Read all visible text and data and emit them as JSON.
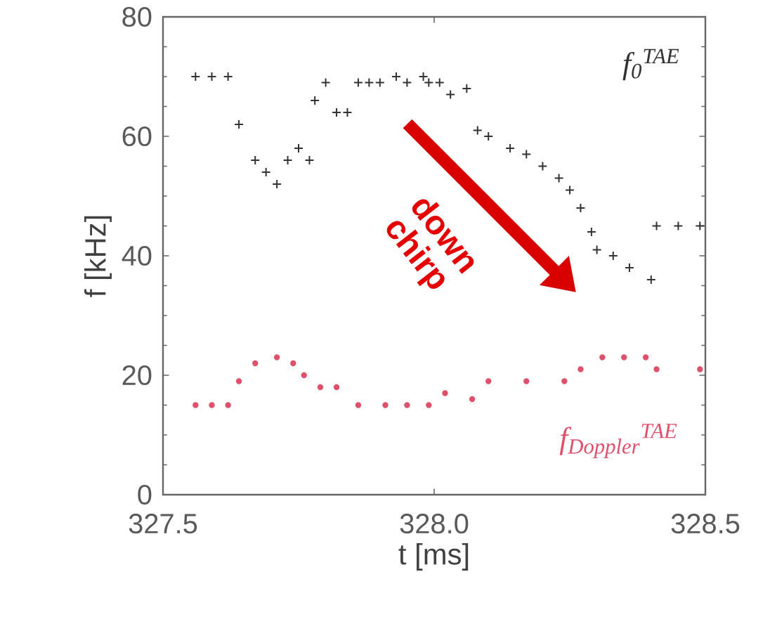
{
  "chart_data": {
    "type": "scatter",
    "xlabel": "t [ms]",
    "ylabel": "f [kHz]",
    "xlim": [
      327.5,
      328.5
    ],
    "ylim": [
      0,
      80
    ],
    "xticks": [
      {
        "value": 327.5,
        "label": "327.5"
      },
      {
        "value": 328,
        "label": "328.0"
      },
      {
        "value": 328.5,
        "label": "328.5"
      }
    ],
    "yticks": [
      0,
      20,
      40,
      60,
      80
    ],
    "grid": false,
    "series": [
      {
        "name": "*f*$_{0}$$^{TAE}$",
        "color": "#333333",
        "marker": "cross",
        "x": [
          327.56,
          327.59,
          327.62,
          327.64,
          327.67,
          327.69,
          327.71,
          327.73,
          327.75,
          327.77,
          327.78,
          327.8,
          327.82,
          327.84,
          327.86,
          327.88,
          327.9,
          327.93,
          327.95,
          327.98,
          327.99,
          328.01,
          328.03,
          328.06,
          328.08,
          328.1,
          328.14,
          328.17,
          328.2,
          328.23,
          328.25,
          328.27,
          328.29,
          328.3,
          328.33,
          328.36,
          328.4,
          328.41,
          328.45,
          328.49
        ],
        "values": [
          70,
          70,
          70,
          62,
          56,
          54,
          52,
          56,
          58,
          56,
          66,
          69,
          64,
          64,
          69,
          69,
          69,
          70,
          69,
          70,
          69,
          69,
          67,
          68,
          61,
          60,
          58,
          57,
          55,
          53,
          51,
          48,
          44,
          41,
          40,
          38,
          36,
          45,
          45,
          45
        ]
      },
      {
        "name": "*f*$_{Doppler}$$^{TAE}$",
        "color": "#e0506a",
        "marker": "circle",
        "x": [
          327.56,
          327.59,
          327.62,
          327.64,
          327.67,
          327.71,
          327.74,
          327.76,
          327.79,
          327.82,
          327.86,
          327.91,
          327.95,
          327.99,
          328.02,
          328.07,
          328.1,
          328.17,
          328.24,
          328.27,
          328.31,
          328.35,
          328.39,
          328.41,
          328.49
        ],
        "values": [
          15,
          15,
          15,
          19,
          22,
          23,
          22,
          20,
          18,
          18,
          15,
          15,
          15,
          15,
          17,
          16,
          19,
          19,
          19,
          21,
          23,
          23,
          23,
          21,
          21
        ]
      }
    ],
    "annotations": [
      "down chirp"
    ]
  }
}
